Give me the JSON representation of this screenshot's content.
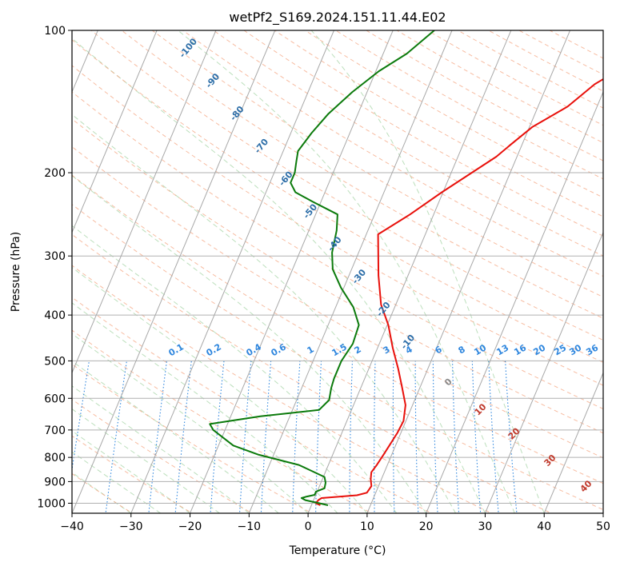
{
  "chart_data": {
    "type": "skew-t",
    "title": "wetPf2_S169.2024.151.11.44.E02",
    "xlabel": "Temperature (°C)",
    "ylabel": "Pressure (hPa)",
    "xlim": [
      -40,
      50
    ],
    "ylim": [
      1050,
      100
    ],
    "x_ticks": [
      -40,
      -30,
      -20,
      -10,
      0,
      10,
      20,
      30,
      40,
      50
    ],
    "y_ticks": [
      100,
      200,
      300,
      400,
      500,
      600,
      700,
      800,
      900,
      1000
    ],
    "grid": true,
    "series": [
      {
        "color": "#e8100b",
        "points": [
          [
            1.5,
            1010
          ],
          [
            0.6,
            1000
          ],
          [
            0.8,
            985
          ],
          [
            1.2,
            975
          ],
          [
            3.5,
            970
          ],
          [
            7.0,
            962
          ],
          [
            8.5,
            950
          ],
          [
            8.8,
            920
          ],
          [
            8.2,
            890
          ],
          [
            7.8,
            860
          ],
          [
            8.2,
            830
          ],
          [
            8.6,
            790
          ],
          [
            9.0,
            750
          ],
          [
            9.4,
            710
          ],
          [
            9.6,
            670
          ],
          [
            8.8,
            620
          ],
          [
            7.0,
            570
          ],
          [
            5.0,
            520
          ],
          [
            2.6,
            470
          ],
          [
            0.2,
            420
          ],
          [
            -2.5,
            380
          ],
          [
            -5.0,
            330
          ],
          [
            -8.0,
            270
          ],
          [
            -4.0,
            245
          ],
          [
            -0.2,
            220
          ],
          [
            3.5,
            200
          ],
          [
            6.5,
            185
          ],
          [
            8.0,
            175
          ],
          [
            10.5,
            160
          ],
          [
            15.0,
            145
          ],
          [
            18.0,
            130
          ],
          [
            21.5,
            120
          ],
          [
            24.0,
            110
          ],
          [
            25.0,
            100
          ]
        ]
      },
      {
        "color": "#0b7a0b",
        "points": [
          [
            2.8,
            1010
          ],
          [
            1.2,
            1000
          ],
          [
            -1.4,
            985
          ],
          [
            -2.2,
            975
          ],
          [
            -1.4,
            968
          ],
          [
            -0.2,
            960
          ],
          [
            -0.2,
            945
          ],
          [
            1.0,
            930
          ],
          [
            0.8,
            905
          ],
          [
            0.2,
            880
          ],
          [
            -5.0,
            830
          ],
          [
            -12.5,
            790
          ],
          [
            -17.5,
            755
          ],
          [
            -22.0,
            700
          ],
          [
            -23.0,
            680
          ],
          [
            -15.0,
            655
          ],
          [
            -5.5,
            635
          ],
          [
            -4.5,
            605
          ],
          [
            -5.0,
            570
          ],
          [
            -5.2,
            545
          ],
          [
            -5.2,
            500
          ],
          [
            -4.5,
            460
          ],
          [
            -4.8,
            420
          ],
          [
            -7.0,
            385
          ],
          [
            -10.5,
            350
          ],
          [
            -13.2,
            320
          ],
          [
            -14.5,
            295
          ],
          [
            -15.3,
            265
          ],
          [
            -16.3,
            245
          ],
          [
            -21.5,
            230
          ],
          [
            -25.0,
            220
          ],
          [
            -26.5,
            210
          ],
          [
            -26.5,
            200
          ],
          [
            -27.0,
            190
          ],
          [
            -27.5,
            180
          ],
          [
            -26.5,
            165
          ],
          [
            -25.0,
            150
          ],
          [
            -22.5,
            135
          ],
          [
            -19.5,
            122
          ],
          [
            -16.0,
            112
          ],
          [
            -13.0,
            100
          ]
        ]
      }
    ],
    "dry_adiabat_labels": [
      "-100",
      "-90",
      "-80",
      "-70",
      "-60",
      "-50",
      "-40",
      "-30",
      "-20",
      "-10"
    ],
    "mixing_ratio_labels": [
      "0.1",
      "0.2",
      "0.4",
      "0.6",
      "1",
      "1.5",
      "2",
      "3",
      "4",
      "6",
      "8",
      "10",
      "13",
      "16",
      "20",
      "25",
      "30",
      "36"
    ],
    "moist_adiabat_labels": [
      "0",
      "10",
      "20",
      "30",
      "40"
    ]
  }
}
